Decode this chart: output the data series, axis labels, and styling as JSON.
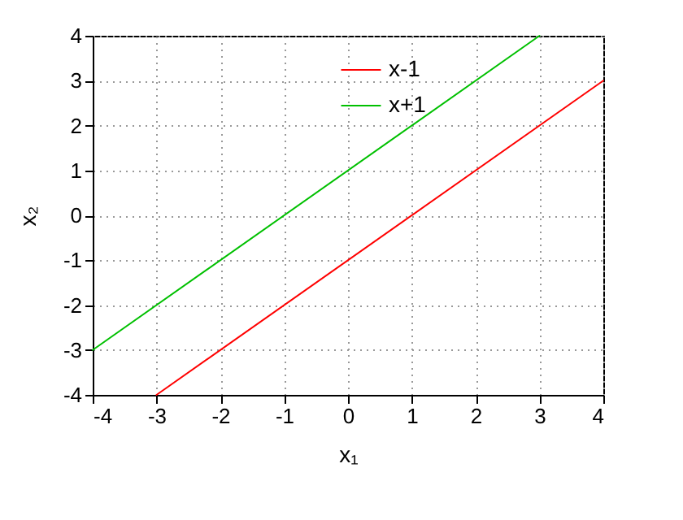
{
  "chart_data": {
    "type": "line",
    "xlabel": "x₁",
    "ylabel": "x₂",
    "xlim": [
      -4,
      4
    ],
    "ylim": [
      -4,
      4
    ],
    "xticks": [
      -4,
      -3,
      -2,
      -1,
      0,
      1,
      2,
      3,
      4
    ],
    "yticks": [
      -4,
      -3,
      -2,
      -1,
      0,
      1,
      2,
      3,
      4
    ],
    "series": [
      {
        "name": "x-1",
        "color": "#ff0000",
        "x": [
          -3,
          4
        ],
        "values": [
          -4,
          3
        ]
      },
      {
        "name": "x+1",
        "color": "#00c000",
        "x": [
          -4,
          3
        ],
        "values": [
          -3,
          4
        ]
      }
    ],
    "grid": true,
    "legend": "top right",
    "marker": "none",
    "line_style": "solid"
  }
}
